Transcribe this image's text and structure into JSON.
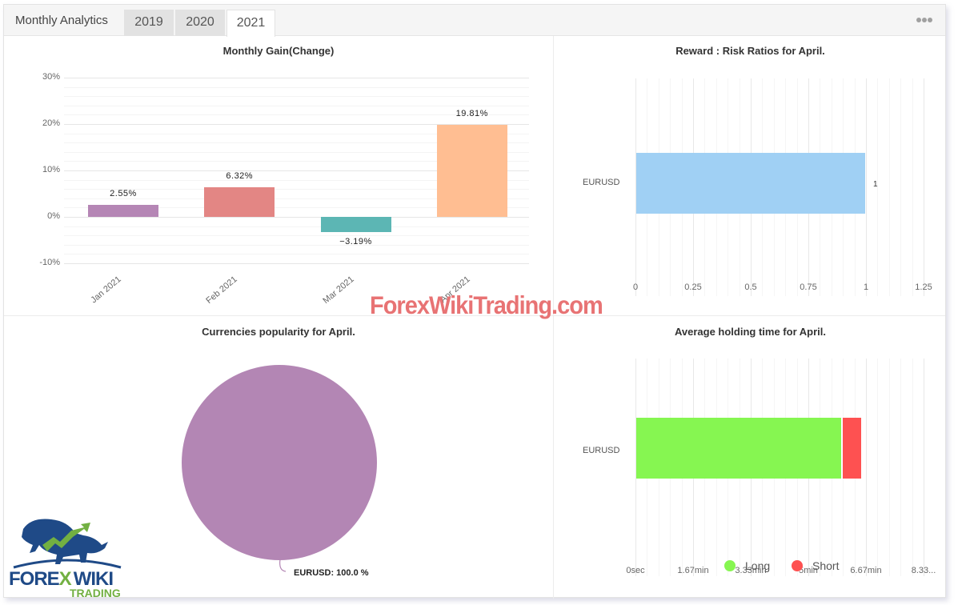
{
  "header": {
    "title": "Monthly Analytics",
    "tabs": [
      {
        "label": "2019",
        "active": false
      },
      {
        "label": "2020",
        "active": false
      },
      {
        "label": "2021",
        "active": true
      }
    ],
    "more_icon": "⋯"
  },
  "watermark": "ForexWikiTrading.com",
  "logo": {
    "line1a": "FORE",
    "line1b": "X",
    "line1c": "WIKI",
    "line2": "TRADING"
  },
  "colors": {
    "jan": "#b586b5",
    "feb": "#e38684",
    "mar": "#5cb6b4",
    "apr": "#ffbe92",
    "ratio": "#a0d0f4",
    "long": "#86f651",
    "short": "#fe5151",
    "pie": "#b386b4"
  },
  "chart_data": [
    {
      "type": "bar",
      "title": "Monthly Gain(Change)",
      "categories": [
        "Jan 2021",
        "Feb 2021",
        "Mar 2021",
        "Apr 2021"
      ],
      "values": [
        2.55,
        6.32,
        -3.19,
        19.81
      ],
      "data_labels": [
        "2.55%",
        "6.32%",
        "−3.19%",
        "19.81%"
      ],
      "ytick_labels": [
        "30%",
        "20%",
        "10%",
        "0%",
        "-10%"
      ],
      "ylim": [
        -10,
        30
      ],
      "xlabel": "",
      "ylabel": "",
      "grid": true
    },
    {
      "type": "bar",
      "orientation": "horizontal",
      "title": "Reward : Risk Ratios for April.",
      "categories": [
        "EURUSD"
      ],
      "values": [
        1
      ],
      "data_labels": [
        "1"
      ],
      "xtick_labels": [
        "0",
        "0.25",
        "0.5",
        "0.75",
        "1",
        "1.25"
      ],
      "xlim": [
        0,
        1.25
      ],
      "grid": true
    },
    {
      "type": "pie",
      "title": "Currencies popularity for April.",
      "categories": [
        "EURUSD"
      ],
      "values": [
        100.0
      ],
      "data_labels": [
        "EURUSD: 100.0 %"
      ]
    },
    {
      "type": "bar",
      "orientation": "horizontal",
      "stacked": true,
      "title": "Average holding time for April.",
      "categories": [
        "EURUSD"
      ],
      "series": [
        {
          "name": "Long",
          "values": [
            5.97
          ]
        },
        {
          "name": "Short",
          "values": [
            0.56
          ]
        }
      ],
      "unit": "min",
      "xtick_labels": [
        "0sec",
        "1.67min",
        "3.33min",
        "5min",
        "6.67min",
        "8.33..."
      ],
      "xlim": [
        0,
        8.33
      ],
      "legend": [
        "Long",
        "Short"
      ],
      "legend_position": "bottom",
      "grid": true
    }
  ]
}
